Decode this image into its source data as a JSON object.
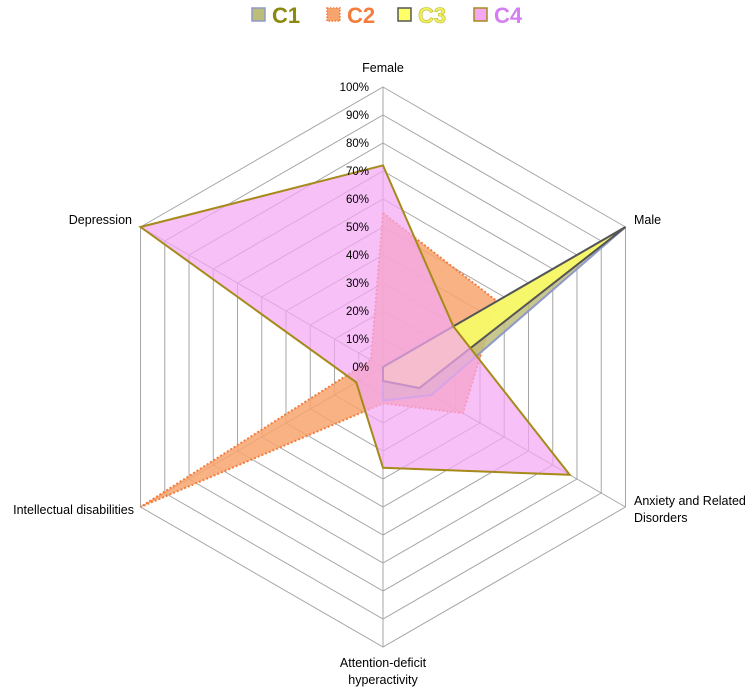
{
  "chart_data": {
    "type": "radar",
    "categories": [
      "Female",
      "Male",
      "Anxiety and Related Disorders",
      "Attention-deficit hyperactivity",
      "Intellectual disabilities",
      "Depression"
    ],
    "category_lines": [
      [
        "Female"
      ],
      [
        "Male"
      ],
      [
        "Anxiety and Related",
        "Disorders"
      ],
      [
        "Attention-deficit",
        "hyperactivity"
      ],
      [
        "Intellectual disabilities"
      ],
      [
        "Depression"
      ]
    ],
    "rlim": [
      0,
      100
    ],
    "ticks": [
      "0%",
      "10%",
      "20%",
      "30%",
      "40%",
      "50%",
      "60%",
      "70%",
      "80%",
      "90%",
      "100%"
    ],
    "grid": true,
    "legend_position": "top",
    "series": [
      {
        "name": "C1",
        "values": [
          0,
          100,
          20,
          12,
          0,
          0
        ],
        "fill": "#bdbd7a",
        "stroke": "#8f9ac8",
        "legend_color": "#8a8a10",
        "dash": false
      },
      {
        "name": "C2",
        "values": [
          55,
          47,
          33,
          13,
          100,
          5
        ],
        "fill": "#f7a46e",
        "stroke": "#f47c3c",
        "legend_color": "#f47c3c",
        "dash": true
      },
      {
        "name": "C3",
        "values": [
          0,
          100,
          15,
          5,
          0,
          0
        ],
        "fill": "#ffff66",
        "stroke": "#555555",
        "legend_color": "#f2f060",
        "dash": false
      },
      {
        "name": "C4",
        "values": [
          72,
          29,
          77,
          36,
          11,
          100
        ],
        "fill": "#f4a8f4",
        "stroke": "#a68a1a",
        "legend_color": "#d47ef2",
        "dash": false
      }
    ]
  }
}
